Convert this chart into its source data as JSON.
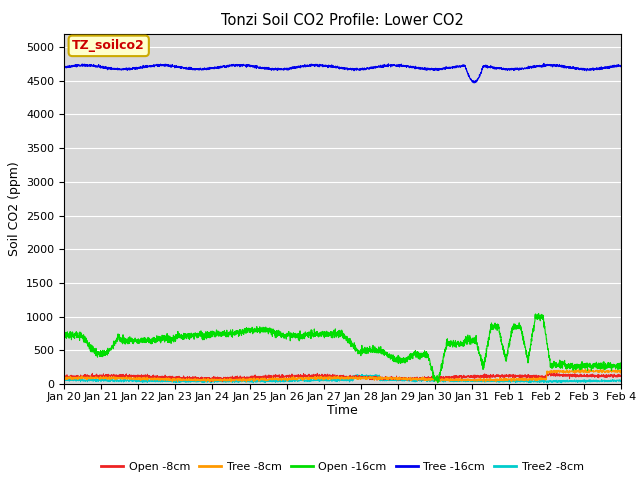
{
  "title": "Tonzi Soil CO2 Profile: Lower CO2",
  "ylabel": "Soil CO2 (ppm)",
  "xlabel": "Time",
  "ylim": [
    0,
    5200
  ],
  "yticks": [
    0,
    500,
    1000,
    1500,
    2000,
    2500,
    3000,
    3500,
    4000,
    4500,
    5000
  ],
  "bg_color": "#d8d8d8",
  "fig_bg": "#ffffff",
  "legend_label": "TZ_soilco2",
  "legend_label_color": "#cc0000",
  "legend_label_bg": "#ffffcc",
  "legend_label_edge": "#ccaa00",
  "series": {
    "open_8cm": {
      "color": "#ee2222",
      "label": "Open -8cm"
    },
    "tree_8cm": {
      "color": "#ff9900",
      "label": "Tree -8cm"
    },
    "open_16cm": {
      "color": "#00dd00",
      "label": "Open -16cm"
    },
    "tree_16cm": {
      "color": "#0000ee",
      "label": "Tree -16cm"
    },
    "tree2_8cm": {
      "color": "#00cccc",
      "label": "Tree2 -8cm"
    }
  },
  "xtick_labels": [
    "Jan 20",
    "Jan 21",
    "Jan 22",
    "Jan 23",
    "Jan 24",
    "Jan 25",
    "Jan 26",
    "Jan 27",
    "Jan 28",
    "Jan 29",
    "Jan 30",
    "Jan 31",
    "Feb 1",
    "Feb 2",
    "Feb 3",
    "Feb 4"
  ],
  "num_points": 3360
}
